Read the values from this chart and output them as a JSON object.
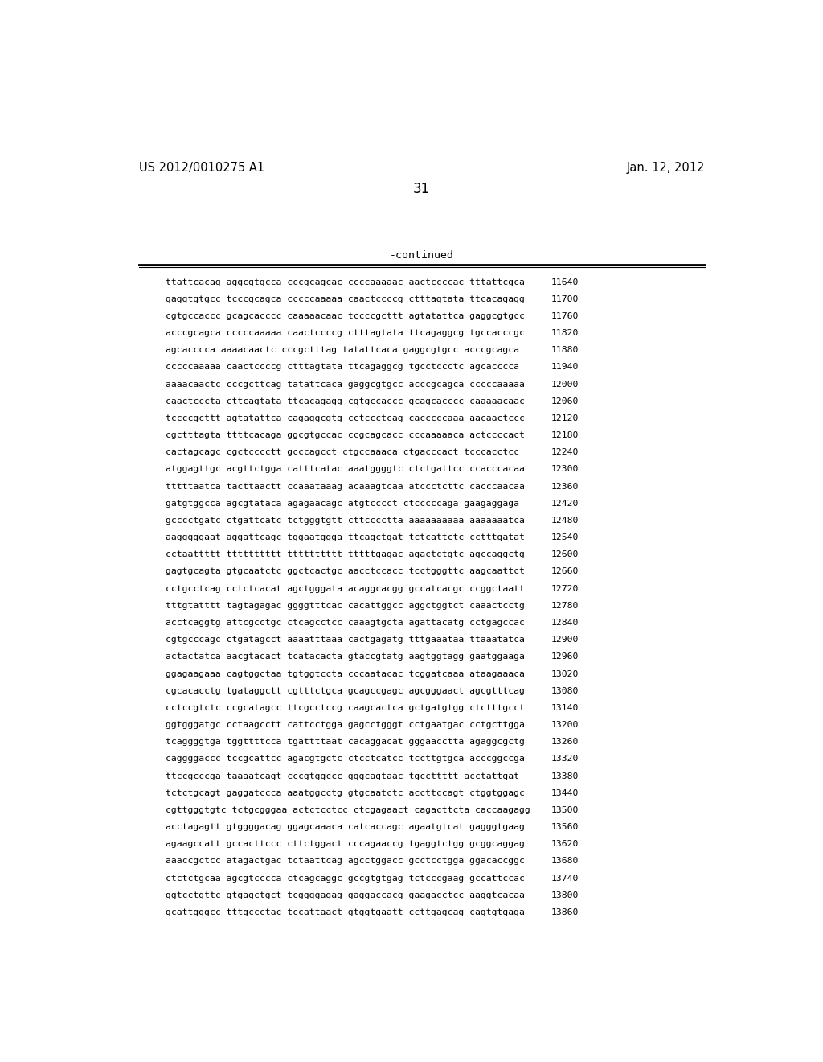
{
  "header_left": "US 2012/0010275 A1",
  "header_right": "Jan. 12, 2012",
  "page_number": "31",
  "continued_label": "-continued",
  "background_color": "#ffffff",
  "text_color": "#000000",
  "sequence_lines": [
    [
      "ttattcacag",
      "aggcgtgcca",
      "cccgcagcac",
      "ccccaaaaac",
      "aactccccac",
      "tttattcgca",
      "11640"
    ],
    [
      "gaggtgtgcc",
      "tcccgcagca",
      "cccccaaaaa",
      "caactccccg",
      "ctttagtata",
      "ttcacagagg",
      "11700"
    ],
    [
      "cgtgccaccc",
      "gcagcacccc",
      "caaaaacaac",
      "tccccgcttt",
      "agtatattca",
      "gaggcgtgcc",
      "11760"
    ],
    [
      "acccgcagca",
      "cccccaaaaa",
      "caactccccg",
      "ctttagtata",
      "ttcagaggcg",
      "tgccacccgc",
      "11820"
    ],
    [
      "agcacccca",
      "aaaacaactc",
      "cccgctttag",
      "tatattcaca",
      "gaggcgtgcc",
      "acccgcagca",
      "11880"
    ],
    [
      "cccccaaaaa",
      "caactccccg",
      "ctttagtata",
      "ttcagaggcg",
      "tgcctccctc",
      "agcacccca",
      "11940"
    ],
    [
      "aaaacaactc",
      "cccgcttcag",
      "tatattcaca",
      "gaggcgtgcc",
      "acccgcagca",
      "cccccaaaaa",
      "12000"
    ],
    [
      "caactcccta",
      "cttcagtata",
      "ttcacagagg",
      "cgtgccaccc",
      "gcagcacccc",
      "caaaaacaac",
      "12060"
    ],
    [
      "tccccgcttt",
      "agtatattca",
      "cagaggcgtg",
      "cctccctcag",
      "cacccccaaa",
      "aacaactccc",
      "12120"
    ],
    [
      "cgctttagta",
      "ttttcacaga",
      "ggcgtgccac",
      "ccgcagcacc",
      "cccaaaaaca",
      "actccccact",
      "12180"
    ],
    [
      "cactagcagc",
      "cgctcccctt",
      "gcccagcct",
      "ctgccaaaca",
      "ctgacccact",
      "tcccacctcc",
      "12240"
    ],
    [
      "atggagttgc",
      "acgttctgga",
      "catttcatac",
      "aaatggggtc",
      "ctctgattcc",
      "ccacccacaa",
      "12300"
    ],
    [
      "tttttaatca",
      "tacttaactt",
      "ccaaataaag",
      "acaaagtcaa",
      "atccctcttc",
      "cacccaacaa",
      "12360"
    ],
    [
      "gatgtggcca",
      "agcgtataca",
      "agagaacagc",
      "atgtcccct",
      "ctcccccaga",
      "gaagaggaga",
      "12420"
    ],
    [
      "gcccctgatc",
      "ctgattcatc",
      "tctgggtgtt",
      "cttcccctta",
      "aaaaaaaaaa",
      "aaaaaaatca",
      "12480"
    ],
    [
      "aagggggaat",
      "aggattcagc",
      "tggaatggga",
      "ttcagctgat",
      "tctcattctc",
      "cctttgatat",
      "12540"
    ],
    [
      "cctaattttt",
      "tttttttttt",
      "tttttttttt",
      "tttttgagac",
      "agactctgtc",
      "agccaggctg",
      "12600"
    ],
    [
      "gagtgcagta",
      "gtgcaatctc",
      "ggctcactgc",
      "aacctccacc",
      "tcctgggttc",
      "aagcaattct",
      "12660"
    ],
    [
      "cctgcctcag",
      "cctctcacat",
      "agctgggata",
      "acaggcacgg",
      "gccatcacgc",
      "ccggctaatt",
      "12720"
    ],
    [
      "tttgtatttt",
      "tagtagagac",
      "ggggtttcac",
      "cacattggcc",
      "aggctggtct",
      "caaactcctg",
      "12780"
    ],
    [
      "acctcaggtg",
      "attcgcctgc",
      "ctcagcctcc",
      "caaagtgcta",
      "agattacatg",
      "cctgagccac",
      "12840"
    ],
    [
      "cgtgcccagc",
      "ctgatagcct",
      "aaaatttaaa",
      "cactgagatg",
      "tttgaaataa",
      "ttaaatatca",
      "12900"
    ],
    [
      "actactatca",
      "aacgtacact",
      "tcatacacta",
      "gtaccgtatg",
      "aagtggtagg",
      "gaatggaaga",
      "12960"
    ],
    [
      "ggagaagaaa",
      "cagtggctaa",
      "tgtggtccta",
      "cccaatacac",
      "tcggatcaaa",
      "ataagaaaca",
      "13020"
    ],
    [
      "cgcacacctg",
      "tgataggctt",
      "cgtttctgca",
      "gcagccgagc",
      "agcgggaact",
      "agcgtttcag",
      "13080"
    ],
    [
      "cctccgtctc",
      "ccgcatagcc",
      "ttcgcctccg",
      "caagcactca",
      "gctgatgtgg",
      "ctctttgcct",
      "13140"
    ],
    [
      "ggtgggatgc",
      "cctaagcctt",
      "cattcctgga",
      "gagcctgggt",
      "cctgaatgac",
      "cctgcttgga",
      "13200"
    ],
    [
      "tcaggggtga",
      "tggttttcca",
      "tgattttaat",
      "cacaggacat",
      "gggaacctta",
      "agaggcgctg",
      "13260"
    ],
    [
      "caggggaccc",
      "tccgcattcc",
      "agacgtgctc",
      "ctcctcatcc",
      "tccttgtgca",
      "acccggccga",
      "13320"
    ],
    [
      "ttccgcccga",
      "taaaatcagt",
      "cccgtggccc",
      "gggcagtaac",
      "tgccttttt",
      "acctattgat",
      "13380"
    ],
    [
      "tctctgcagt",
      "gaggatccca",
      "aaatggcctg",
      "gtgcaatctc",
      "accttccagt",
      "ctggtggagc",
      "13440"
    ],
    [
      "cgttgggtgtc",
      "tctgcgggaa",
      "actctcctcc",
      "ctcgagaact",
      "cagacttcta",
      "caccaagagg",
      "13500"
    ],
    [
      "acctagagtt",
      "gtggggacag",
      "ggagcaaaca",
      "catcaccagc",
      "agaatgtcat",
      "gagggtgaag",
      "13560"
    ],
    [
      "agaagccatt",
      "gccacttccc",
      "cttctggact",
      "cccagaaccg",
      "tgaggtctgg",
      "gcggcaggag",
      "13620"
    ],
    [
      "aaaccgctcc",
      "atagactgac",
      "tctaattcag",
      "agcctggacc",
      "gcctcctgga",
      "ggacaccggc",
      "13680"
    ],
    [
      "ctctctgcaa",
      "agcgtcccca",
      "ctcagcaggc",
      "gccgtgtgag",
      "tctcccgaag",
      "gccattccac",
      "13740"
    ],
    [
      "ggtcctgttc",
      "gtgagctgct",
      "tcggggagag",
      "gaggaccacg",
      "gaagacctcc",
      "aaggtcacaa",
      "13800"
    ],
    [
      "gcattgggcc",
      "tttgccctac",
      "tccattaact",
      "gtggtgaatt",
      "ccttgagcag",
      "cagtgtgaga",
      "13860"
    ]
  ]
}
